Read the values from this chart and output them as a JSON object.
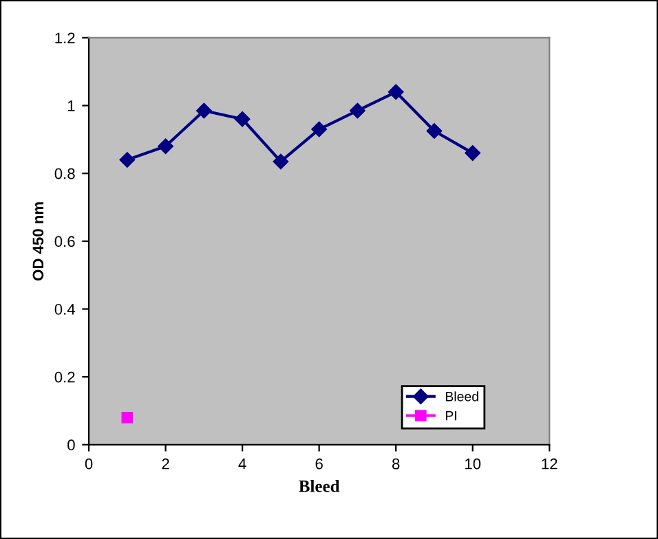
{
  "chart_data": {
    "type": "line",
    "xlabel": "Bleed",
    "ylabel": "OD 450 nm",
    "xlim": [
      0,
      12
    ],
    "xticks": [
      0,
      2,
      4,
      6,
      8,
      10,
      12
    ],
    "ylim": [
      0,
      1.2
    ],
    "yticks": [
      0,
      0.2,
      0.4,
      0.6,
      0.8,
      1,
      1.2
    ],
    "series": [
      {
        "name": "Bleed",
        "color": "#000080",
        "marker": "diamond",
        "x": [
          1,
          2,
          3,
          4,
          5,
          6,
          7,
          8,
          9,
          10
        ],
        "values": [
          0.84,
          0.88,
          0.985,
          0.96,
          0.835,
          0.93,
          0.985,
          1.04,
          0.925,
          0.86
        ]
      },
      {
        "name": "PI",
        "color": "#ff00ff",
        "marker": "square",
        "x": [
          1
        ],
        "values": [
          0.08
        ]
      }
    ],
    "legend": "bottom right",
    "grid": false
  }
}
